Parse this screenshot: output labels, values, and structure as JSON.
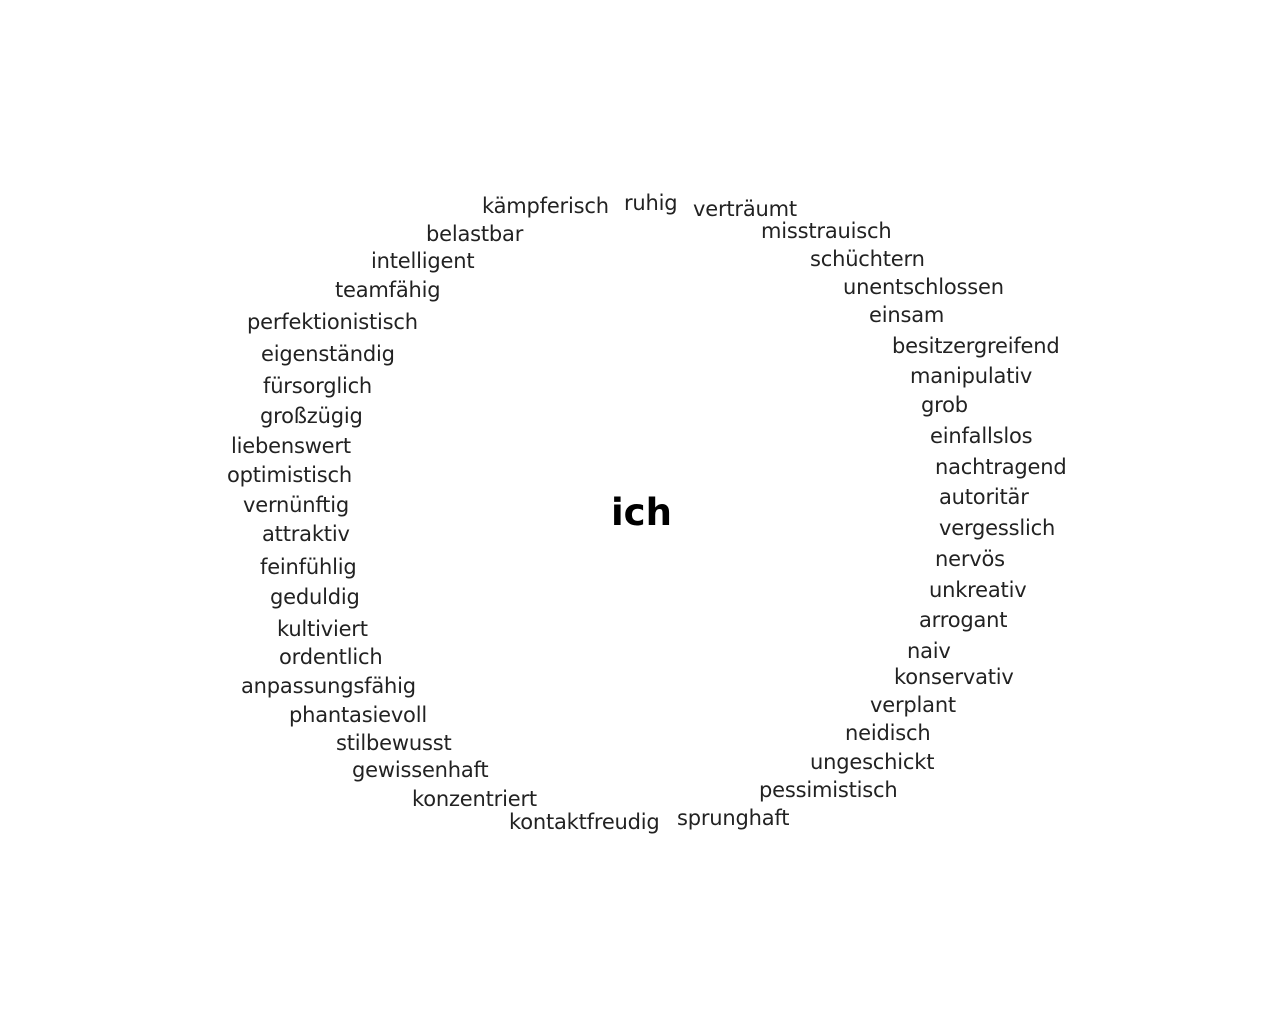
{
  "center": "ich",
  "positive_words": [
    "kämpferisch",
    "belastbar",
    "intelligent",
    "teamfähig",
    "perfektionistisch",
    "eigenständig",
    "fürsorglich",
    "großzügig",
    "liebenswert",
    "optimistisch",
    "vernünftig",
    "attraktiv",
    "feinfühlig",
    "geduldig",
    "kultiviert",
    "ordentlich",
    "anpassungsfähig",
    "phantasievoll",
    "stilbewusst",
    "gewissenhaft",
    "konzentriert",
    "kontaktfreudig"
  ],
  "top_word": "ruhig",
  "negative_words": [
    "verträumt",
    "misstrauisch",
    "schüchtern",
    "unentschlossen",
    "einsam",
    "besitzergreifend",
    "manipulativ",
    "grob",
    "einfallslos",
    "nachtragend",
    "autoritär",
    "vergesslich",
    "nervös",
    "unkreativ",
    "arrogant",
    "naiv",
    "konservativ",
    "verplant",
    "neidisch",
    "ungeschickt",
    "pessimistisch",
    "sprunghaft"
  ]
}
